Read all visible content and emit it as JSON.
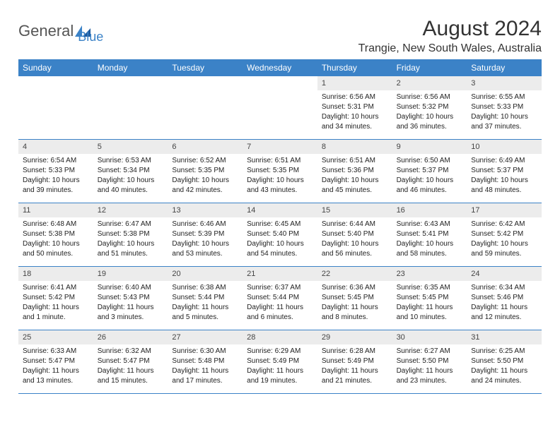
{
  "logo": {
    "text1": "General",
    "text2": "Blue"
  },
  "title": "August 2024",
  "location": "Trangie, New South Wales, Australia",
  "weekdays": [
    "Sunday",
    "Monday",
    "Tuesday",
    "Wednesday",
    "Thursday",
    "Friday",
    "Saturday"
  ],
  "header_bg": "#3b82c7",
  "header_fg": "#ffffff",
  "daynum_bg": "#ececec",
  "border_color": "#3b82c7",
  "days": [
    {
      "blank": true
    },
    {
      "blank": true
    },
    {
      "blank": true
    },
    {
      "blank": true
    },
    {
      "n": "1",
      "sr": "Sunrise: 6:56 AM",
      "ss": "Sunset: 5:31 PM",
      "dl1": "Daylight: 10 hours",
      "dl2": "and 34 minutes."
    },
    {
      "n": "2",
      "sr": "Sunrise: 6:56 AM",
      "ss": "Sunset: 5:32 PM",
      "dl1": "Daylight: 10 hours",
      "dl2": "and 36 minutes."
    },
    {
      "n": "3",
      "sr": "Sunrise: 6:55 AM",
      "ss": "Sunset: 5:33 PM",
      "dl1": "Daylight: 10 hours",
      "dl2": "and 37 minutes."
    },
    {
      "n": "4",
      "sr": "Sunrise: 6:54 AM",
      "ss": "Sunset: 5:33 PM",
      "dl1": "Daylight: 10 hours",
      "dl2": "and 39 minutes."
    },
    {
      "n": "5",
      "sr": "Sunrise: 6:53 AM",
      "ss": "Sunset: 5:34 PM",
      "dl1": "Daylight: 10 hours",
      "dl2": "and 40 minutes."
    },
    {
      "n": "6",
      "sr": "Sunrise: 6:52 AM",
      "ss": "Sunset: 5:35 PM",
      "dl1": "Daylight: 10 hours",
      "dl2": "and 42 minutes."
    },
    {
      "n": "7",
      "sr": "Sunrise: 6:51 AM",
      "ss": "Sunset: 5:35 PM",
      "dl1": "Daylight: 10 hours",
      "dl2": "and 43 minutes."
    },
    {
      "n": "8",
      "sr": "Sunrise: 6:51 AM",
      "ss": "Sunset: 5:36 PM",
      "dl1": "Daylight: 10 hours",
      "dl2": "and 45 minutes."
    },
    {
      "n": "9",
      "sr": "Sunrise: 6:50 AM",
      "ss": "Sunset: 5:37 PM",
      "dl1": "Daylight: 10 hours",
      "dl2": "and 46 minutes."
    },
    {
      "n": "10",
      "sr": "Sunrise: 6:49 AM",
      "ss": "Sunset: 5:37 PM",
      "dl1": "Daylight: 10 hours",
      "dl2": "and 48 minutes."
    },
    {
      "n": "11",
      "sr": "Sunrise: 6:48 AM",
      "ss": "Sunset: 5:38 PM",
      "dl1": "Daylight: 10 hours",
      "dl2": "and 50 minutes."
    },
    {
      "n": "12",
      "sr": "Sunrise: 6:47 AM",
      "ss": "Sunset: 5:38 PM",
      "dl1": "Daylight: 10 hours",
      "dl2": "and 51 minutes."
    },
    {
      "n": "13",
      "sr": "Sunrise: 6:46 AM",
      "ss": "Sunset: 5:39 PM",
      "dl1": "Daylight: 10 hours",
      "dl2": "and 53 minutes."
    },
    {
      "n": "14",
      "sr": "Sunrise: 6:45 AM",
      "ss": "Sunset: 5:40 PM",
      "dl1": "Daylight: 10 hours",
      "dl2": "and 54 minutes."
    },
    {
      "n": "15",
      "sr": "Sunrise: 6:44 AM",
      "ss": "Sunset: 5:40 PM",
      "dl1": "Daylight: 10 hours",
      "dl2": "and 56 minutes."
    },
    {
      "n": "16",
      "sr": "Sunrise: 6:43 AM",
      "ss": "Sunset: 5:41 PM",
      "dl1": "Daylight: 10 hours",
      "dl2": "and 58 minutes."
    },
    {
      "n": "17",
      "sr": "Sunrise: 6:42 AM",
      "ss": "Sunset: 5:42 PM",
      "dl1": "Daylight: 10 hours",
      "dl2": "and 59 minutes."
    },
    {
      "n": "18",
      "sr": "Sunrise: 6:41 AM",
      "ss": "Sunset: 5:42 PM",
      "dl1": "Daylight: 11 hours",
      "dl2": "and 1 minute."
    },
    {
      "n": "19",
      "sr": "Sunrise: 6:40 AM",
      "ss": "Sunset: 5:43 PM",
      "dl1": "Daylight: 11 hours",
      "dl2": "and 3 minutes."
    },
    {
      "n": "20",
      "sr": "Sunrise: 6:38 AM",
      "ss": "Sunset: 5:44 PM",
      "dl1": "Daylight: 11 hours",
      "dl2": "and 5 minutes."
    },
    {
      "n": "21",
      "sr": "Sunrise: 6:37 AM",
      "ss": "Sunset: 5:44 PM",
      "dl1": "Daylight: 11 hours",
      "dl2": "and 6 minutes."
    },
    {
      "n": "22",
      "sr": "Sunrise: 6:36 AM",
      "ss": "Sunset: 5:45 PM",
      "dl1": "Daylight: 11 hours",
      "dl2": "and 8 minutes."
    },
    {
      "n": "23",
      "sr": "Sunrise: 6:35 AM",
      "ss": "Sunset: 5:45 PM",
      "dl1": "Daylight: 11 hours",
      "dl2": "and 10 minutes."
    },
    {
      "n": "24",
      "sr": "Sunrise: 6:34 AM",
      "ss": "Sunset: 5:46 PM",
      "dl1": "Daylight: 11 hours",
      "dl2": "and 12 minutes."
    },
    {
      "n": "25",
      "sr": "Sunrise: 6:33 AM",
      "ss": "Sunset: 5:47 PM",
      "dl1": "Daylight: 11 hours",
      "dl2": "and 13 minutes."
    },
    {
      "n": "26",
      "sr": "Sunrise: 6:32 AM",
      "ss": "Sunset: 5:47 PM",
      "dl1": "Daylight: 11 hours",
      "dl2": "and 15 minutes."
    },
    {
      "n": "27",
      "sr": "Sunrise: 6:30 AM",
      "ss": "Sunset: 5:48 PM",
      "dl1": "Daylight: 11 hours",
      "dl2": "and 17 minutes."
    },
    {
      "n": "28",
      "sr": "Sunrise: 6:29 AM",
      "ss": "Sunset: 5:49 PM",
      "dl1": "Daylight: 11 hours",
      "dl2": "and 19 minutes."
    },
    {
      "n": "29",
      "sr": "Sunrise: 6:28 AM",
      "ss": "Sunset: 5:49 PM",
      "dl1": "Daylight: 11 hours",
      "dl2": "and 21 minutes."
    },
    {
      "n": "30",
      "sr": "Sunrise: 6:27 AM",
      "ss": "Sunset: 5:50 PM",
      "dl1": "Daylight: 11 hours",
      "dl2": "and 23 minutes."
    },
    {
      "n": "31",
      "sr": "Sunrise: 6:25 AM",
      "ss": "Sunset: 5:50 PM",
      "dl1": "Daylight: 11 hours",
      "dl2": "and 24 minutes."
    }
  ]
}
